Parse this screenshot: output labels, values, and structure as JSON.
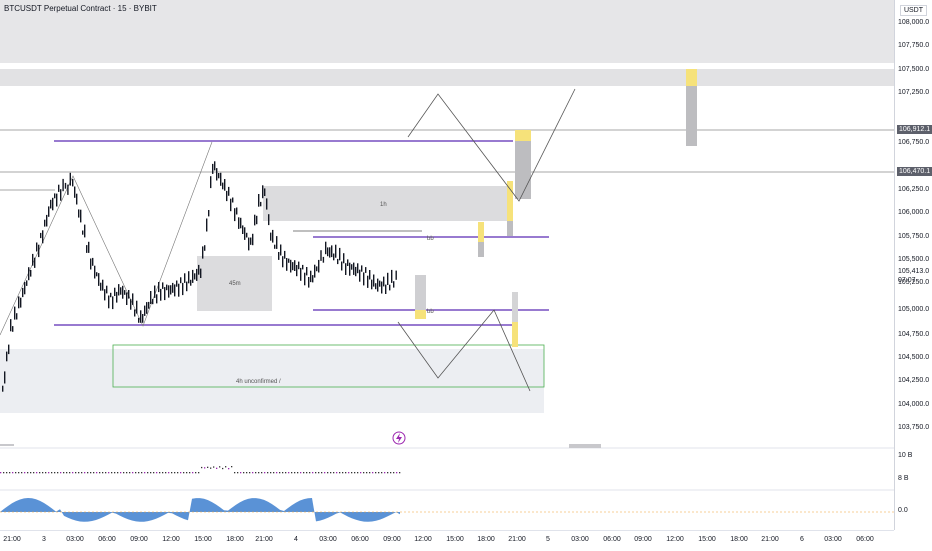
{
  "header": {
    "title": "BTCUSDT Perpetual Contract · 15 · BYBIT"
  },
  "price_axis": {
    "currency": "USDT",
    "ticks": [
      "108,000.0",
      "107,750.0",
      "107,500.0",
      "107,250.0",
      "106,750.0",
      "106,250.0",
      "106,000.0",
      "105,750.0",
      "105,500.0",
      "105,250.0",
      "105,000.0",
      "104,750.0",
      "104,500.0",
      "104,250.0",
      "104,000.0",
      "103,750.0"
    ],
    "labels": {
      "level_high": "106,912.1",
      "level_mid": "106,470.1",
      "last_price": "105,413.0",
      "countdown": "07:07"
    }
  },
  "time_axis": {
    "ticks": [
      "21:00",
      "3",
      "03:00",
      "06:00",
      "09:00",
      "12:00",
      "15:00",
      "18:00",
      "21:00",
      "4",
      "03:00",
      "06:00",
      "09:00",
      "12:00",
      "15:00",
      "18:00",
      "21:00",
      "5",
      "03:00",
      "06:00",
      "09:00",
      "12:00",
      "15:00",
      "18:00",
      "21:00",
      "6",
      "03:00",
      "06:00"
    ]
  },
  "volume_pane": {
    "scale_top": "10 B",
    "scale_bottom": "8 B"
  },
  "oscillator_pane": {
    "zero_label": "0.0"
  },
  "zones": {
    "h1": "1h",
    "m45": "45m",
    "h4": "4h unconfirmed /",
    "bb_upper": "bb",
    "bb_lower": "bb"
  },
  "icons": {
    "replay": "lightning-icon"
  },
  "colors": {
    "level_line": "#5b2bb5",
    "zone_gray": "#d9d9dc",
    "highlight": "#f6e27a",
    "candle": "#131722",
    "green_zone": "#4caf50",
    "osc_blue": "#3d7fcf"
  }
}
